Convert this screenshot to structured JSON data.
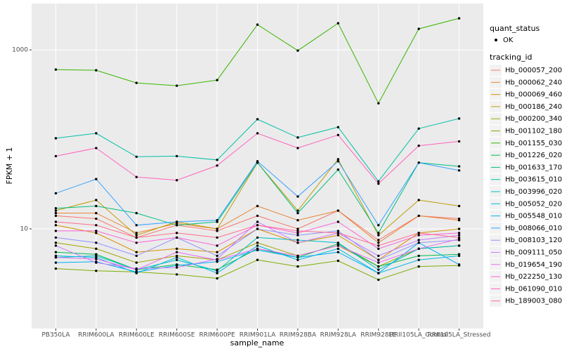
{
  "chart_data": {
    "type": "line",
    "ylog": true,
    "grid": true,
    "x_label": "sample_name",
    "y_label": "FPKM + 1",
    "ylim": [
      0.77,
      3300
    ],
    "yticks": [
      10,
      1000
    ],
    "shape_legend": {
      "title": "quant_status",
      "labels": [
        "OK"
      ]
    },
    "legend_title": "tracking_id",
    "categories": [
      "PB350LA",
      "RRIM600LA",
      "RRIM600LE",
      "RRIM600SE",
      "RRIM600PE",
      "RRIM901LA",
      "RRIM928BA",
      "RRIM928LA",
      "RRIM928LE",
      "RRII105LA_Control",
      "RRII105LA_Stressed"
    ],
    "series": [
      {
        "name": "Hb_000057_200",
        "color": "#F8766D",
        "values": [
          14,
          13,
          8,
          11,
          9.5,
          14,
          10,
          16,
          7.5,
          14,
          13
        ]
      },
      {
        "name": "Hb_000062_240",
        "color": "#EA8331",
        "values": [
          15,
          15,
          9,
          11.5,
          10,
          18,
          12.5,
          16,
          7,
          14,
          12.5
        ]
      },
      {
        "name": "Hb_000069_460",
        "color": "#D89000",
        "values": [
          11,
          9,
          5.5,
          6,
          5.5,
          10,
          7,
          8.5,
          4.5,
          9,
          10
        ]
      },
      {
        "name": "Hb_000186_240",
        "color": "#C09B00",
        "values": [
          16,
          21,
          8.5,
          12,
          10,
          55,
          16,
          60,
          8.5,
          21,
          18
        ]
      },
      {
        "name": "Hb_000200_340",
        "color": "#A3A500",
        "values": [
          7,
          6,
          4.2,
          5,
          4.5,
          7,
          5,
          6.5,
          3.8,
          6,
          6.5
        ]
      },
      {
        "name": "Hb_001102_180",
        "color": "#7CAE00",
        "values": [
          3.6,
          3.4,
          3.3,
          3.1,
          2.8,
          4.5,
          3.8,
          4.4,
          2.7,
          3.8,
          3.9
        ]
      },
      {
        "name": "Hb_001155_030",
        "color": "#39B600",
        "values": [
          603,
          592,
          428,
          398,
          460,
          1917,
          982,
          1987,
          253,
          1719,
          2254
        ]
      },
      {
        "name": "Hb_001226_020",
        "color": "#00BB4E",
        "values": [
          5.5,
          5.2,
          3.5,
          4,
          3.5,
          6,
          4.8,
          6.8,
          3.8,
          5,
          5.2
        ]
      },
      {
        "name": "Hb_001633_170",
        "color": "#00BF7D",
        "values": [
          17,
          18,
          15,
          11,
          12,
          55,
          15,
          46,
          9,
          55,
          50
        ]
      },
      {
        "name": "Hb_003615_010",
        "color": "#00C1A3",
        "values": [
          103,
          117,
          64,
          65,
          59,
          168,
          105,
          137,
          34,
          132,
          171
        ]
      },
      {
        "name": "Hb_003996_020",
        "color": "#00BFC4",
        "values": [
          4.8,
          5,
          3.5,
          4.5,
          3.4,
          8,
          7.5,
          7,
          3.5,
          6,
          6.5
        ]
      },
      {
        "name": "Hb_005052_020",
        "color": "#00BAE0",
        "values": [
          5,
          4.8,
          3.2,
          4.8,
          3.2,
          6.5,
          4.5,
          6,
          3.2,
          4.5,
          5
        ]
      },
      {
        "name": "Hb_005548_010",
        "color": "#00B0F6",
        "values": [
          4.2,
          4.3,
          3.3,
          3.9,
          4.3,
          5.8,
          4.8,
          5.5,
          3.2,
          7,
          4
        ]
      },
      {
        "name": "Hb_008066_010",
        "color": "#35A2FF",
        "values": [
          25,
          36,
          11,
          12,
          12.5,
          57,
          23,
          57,
          11,
          55,
          45
        ]
      },
      {
        "name": "Hb_008103_120",
        "color": "#9590FF",
        "values": [
          8,
          7,
          5,
          8,
          5,
          10,
          8.5,
          9.5,
          4.5,
          7,
          7.5
        ]
      },
      {
        "name": "Hb_009111_050",
        "color": "#C77CFF",
        "values": [
          6.5,
          4.2,
          3.6,
          3.7,
          4.6,
          12,
          7,
          9,
          5,
          7.5,
          8.5
        ]
      },
      {
        "name": "Hb_019654_190",
        "color": "#E76BF3",
        "values": [
          4.8,
          4.6,
          3.5,
          5.5,
          4.5,
          6,
          5,
          6.5,
          4.2,
          6,
          7.7
        ]
      },
      {
        "name": "Hb_022250_130",
        "color": "#FA62DB",
        "values": [
          9.5,
          9.5,
          7,
          8,
          6.5,
          11,
          9,
          12,
          6,
          8.5,
          9
        ]
      },
      {
        "name": "Hb_061090_010",
        "color": "#FF62BC",
        "values": [
          65,
          80,
          38,
          35,
          51,
          117,
          80,
          112,
          32,
          85,
          95
        ]
      },
      {
        "name": "Hb_189003_080",
        "color": "#FF6C91",
        "values": [
          12,
          11,
          8,
          9,
          8,
          11,
          9.5,
          9,
          6.5,
          9,
          8
        ]
      }
    ]
  }
}
